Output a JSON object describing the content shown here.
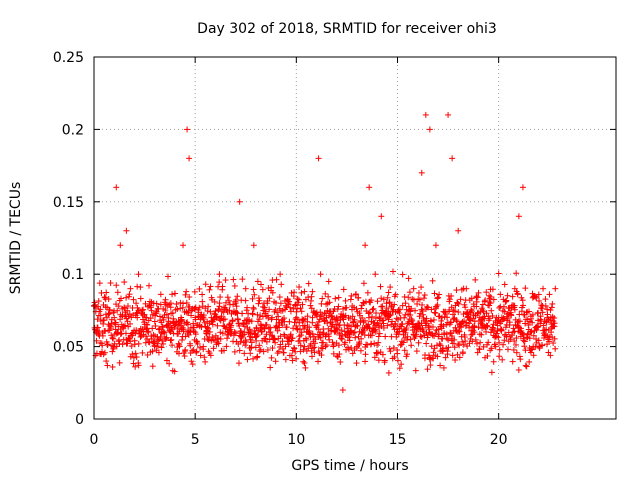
{
  "chart_data": {
    "type": "scatter",
    "title": "Day 302 of 2018, SRMTID for receiver ohi3",
    "xlabel": "GPS time / hours",
    "ylabel": "SRMTID / TECUs",
    "xlim": [
      0,
      25.8
    ],
    "ylim": [
      0,
      0.25
    ],
    "x_ticks": [
      "0",
      "5",
      "10",
      "15",
      "20"
    ],
    "x_tick_values": [
      0,
      5,
      10,
      15,
      20
    ],
    "y_ticks": [
      "0",
      "0.05",
      "0.1",
      "0.15",
      "0.2",
      "0.25"
    ],
    "y_tick_values": [
      0,
      0.05,
      0.1,
      0.15,
      0.2,
      0.25
    ],
    "grid": true,
    "marker": "+",
    "color": "#ff0000",
    "series": [
      {
        "name": "SRMTID",
        "x": [
          0.1,
          0.3,
          0.6,
          1.0,
          1.1,
          1.3,
          1.6,
          1.8,
          2.2,
          2.6,
          3.0,
          3.4,
          3.8,
          4.2,
          4.4,
          4.6,
          4.7,
          5.0,
          5.4,
          5.8,
          6.2,
          6.6,
          7.0,
          7.2,
          7.5,
          7.9,
          8.1,
          8.4,
          8.8,
          9.2,
          9.6,
          10.0,
          10.4,
          10.8,
          11.1,
          11.2,
          11.6,
          12.0,
          12.3,
          12.6,
          13.0,
          13.4,
          13.6,
          13.9,
          14.2,
          14.6,
          15.0,
          15.4,
          15.8,
          16.2,
          16.4,
          16.6,
          16.9,
          17.2,
          17.5,
          17.7,
          18.0,
          18.4,
          18.8,
          19.2,
          19.6,
          20.0,
          20.4,
          20.8,
          21.0,
          21.2,
          21.6,
          22.0,
          22.4,
          22.8
        ],
        "y": [
          0.06,
          0.045,
          0.04,
          0.07,
          0.16,
          0.12,
          0.13,
          0.09,
          0.1,
          0.07,
          0.05,
          0.07,
          0.08,
          0.065,
          0.12,
          0.2,
          0.18,
          0.06,
          0.05,
          0.07,
          0.1,
          0.06,
          0.08,
          0.15,
          0.09,
          0.12,
          0.095,
          0.08,
          0.07,
          0.1,
          0.08,
          0.07,
          0.05,
          0.07,
          0.18,
          0.1,
          0.095,
          0.07,
          0.02,
          0.06,
          0.05,
          0.12,
          0.16,
          0.1,
          0.14,
          0.08,
          0.06,
          0.08,
          0.09,
          0.17,
          0.21,
          0.2,
          0.12,
          0.07,
          0.21,
          0.18,
          0.13,
          0.09,
          0.06,
          0.065,
          0.08,
          0.07,
          0.065,
          0.09,
          0.14,
          0.16,
          0.06,
          0.05,
          0.07,
          0.09
        ],
        "cloud": {
          "x_range": [
            0,
            22.8
          ],
          "y_base": 0.065,
          "y_spread": 0.025,
          "count": 1800
        }
      }
    ]
  }
}
